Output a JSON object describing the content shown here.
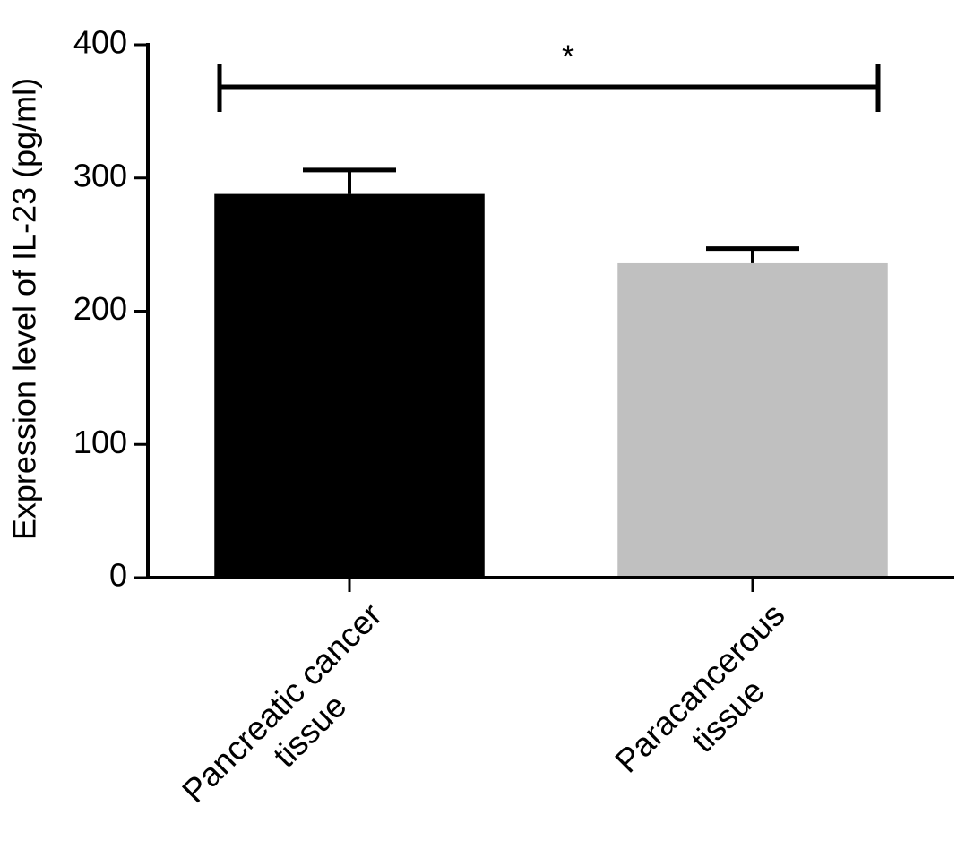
{
  "chart_data": {
    "type": "bar",
    "y_label": "Expression level of IL-23 (pg/ml)",
    "categories": [
      "Pancreatic cancer\ntissue",
      "Paracancerous\ntissue"
    ],
    "values": [
      288,
      236
    ],
    "errors": [
      18,
      11
    ],
    "colors": [
      "#000000",
      "#c0c0c0"
    ],
    "ylim": [
      0,
      400
    ],
    "yticks": [
      0,
      100,
      200,
      300,
      400
    ],
    "grid": false,
    "annotation": "*"
  }
}
